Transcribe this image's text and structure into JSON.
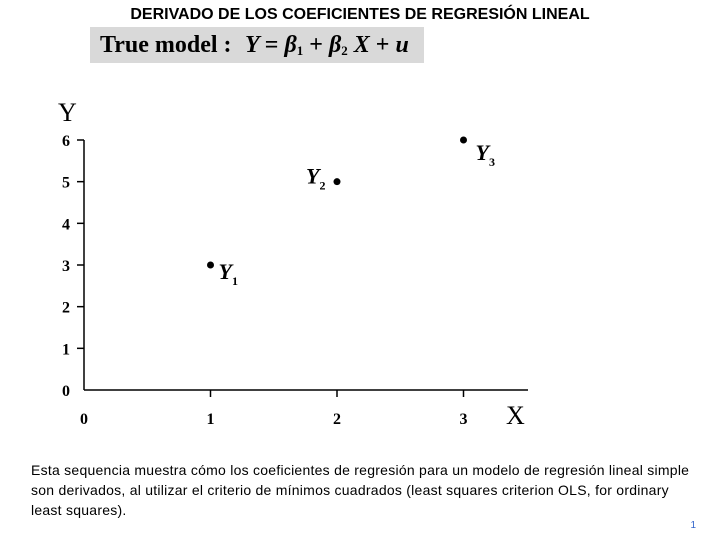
{
  "slide": {
    "title": "DERIVADO DE LOS COEFICIENTES DE REGRESIÓN LINEAL",
    "model_label": "True model :",
    "model_equation": {
      "y": "Y",
      "eq": "=",
      "b1": "β",
      "b1_sub": "1",
      "plus1": "+",
      "b2": "β",
      "b2_sub": "2",
      "x": "X",
      "plus2": "+",
      "u": "u"
    },
    "description": "Esta sequencia muestra cómo los coeficientes de regresión para un modelo de regresión lineal simple son derivados, al utilizar el criterio de mínimos cuadrados (least squares criterion OLS, for ordinary least squares).",
    "page_number": "1",
    "colors": {
      "model_box": "#d9d9d9",
      "page_number": "#3366cc",
      "ink": "#000000"
    }
  },
  "chart_data": {
    "type": "scatter",
    "xlabel": "X",
    "ylabel": "Y",
    "xlim": [
      0,
      3.5
    ],
    "ylim": [
      0,
      6
    ],
    "x_ticks": [
      0,
      1,
      2,
      3
    ],
    "y_ticks": [
      0,
      1,
      2,
      3,
      4,
      5,
      6
    ],
    "grid": false,
    "points": [
      {
        "x": 1,
        "y": 3,
        "label": "Y",
        "sub": "1"
      },
      {
        "x": 2,
        "y": 5,
        "label": "Y",
        "sub": "2"
      },
      {
        "x": 3,
        "y": 6,
        "label": "Y",
        "sub": "3"
      }
    ]
  }
}
